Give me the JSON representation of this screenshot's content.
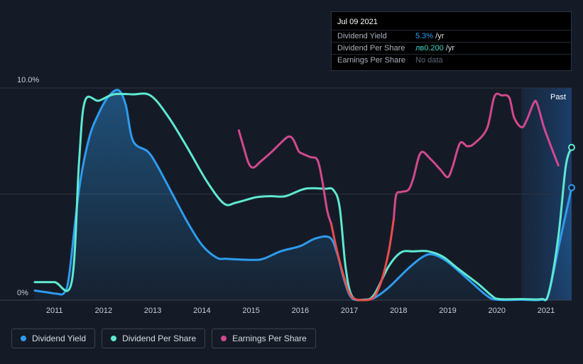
{
  "tooltip": {
    "date": "Jul 09 2021",
    "rows": [
      {
        "label": "Dividend Yield",
        "value": "5.3%",
        "unit": " /yr"
      },
      {
        "label": "Dividend Per Share",
        "value": "лв0.200",
        "unit": " /yr"
      },
      {
        "label": "Earnings Per Share",
        "value": "No data",
        "unit": ""
      }
    ]
  },
  "legend": {
    "items": [
      {
        "label": "Dividend Yield",
        "color": "#2d9cf0"
      },
      {
        "label": "Dividend Per Share",
        "color": "#5ee8d2"
      },
      {
        "label": "Earnings Per Share",
        "color": "#d0498f"
      }
    ]
  },
  "chart_data": {
    "type": "line",
    "title": "",
    "xlabel": "",
    "ylabel": "",
    "ylim": [
      0,
      10
    ],
    "y_tick_labels": [
      "10.0%",
      "0%"
    ],
    "x_tick_labels": [
      "2011",
      "2012",
      "2013",
      "2014",
      "2015",
      "2016",
      "2017",
      "2018",
      "2019",
      "2020",
      "2021"
    ],
    "xlim": [
      2010.6,
      2021.52
    ],
    "past_label": "Past",
    "past_start": 2020.5,
    "negative_color": "#e84d4d",
    "series": [
      {
        "name": "Dividend Yield",
        "color": "#2d9cf0",
        "fill": true,
        "points": [
          [
            2010.6,
            0.45
          ],
          [
            2010.9,
            0.35
          ],
          [
            2011.05,
            0.3
          ],
          [
            2011.2,
            0.35
          ],
          [
            2011.3,
            1.2
          ],
          [
            2011.5,
            5.2
          ],
          [
            2011.7,
            7.6
          ],
          [
            2011.9,
            8.8
          ],
          [
            2012.1,
            9.6
          ],
          [
            2012.3,
            9.9
          ],
          [
            2012.45,
            9.2
          ],
          [
            2012.6,
            7.5
          ],
          [
            2012.9,
            7.0
          ],
          [
            2013.1,
            6.3
          ],
          [
            2013.4,
            5.0
          ],
          [
            2013.7,
            3.7
          ],
          [
            2014.0,
            2.6
          ],
          [
            2014.3,
            2.0
          ],
          [
            2014.5,
            1.95
          ],
          [
            2015.0,
            1.9
          ],
          [
            2015.25,
            1.95
          ],
          [
            2015.6,
            2.3
          ],
          [
            2016.0,
            2.55
          ],
          [
            2016.3,
            2.9
          ],
          [
            2016.6,
            2.95
          ],
          [
            2016.75,
            2.2
          ],
          [
            2016.9,
            0.9
          ],
          [
            2017.05,
            0.1
          ],
          [
            2017.3,
            0.02
          ],
          [
            2017.5,
            0.1
          ],
          [
            2017.8,
            0.6
          ],
          [
            2018.2,
            1.5
          ],
          [
            2018.5,
            2.05
          ],
          [
            2018.7,
            2.15
          ],
          [
            2019.0,
            1.8
          ],
          [
            2019.5,
            0.8
          ],
          [
            2019.8,
            0.2
          ],
          [
            2020.0,
            0.02
          ],
          [
            2020.5,
            0.02
          ],
          [
            2020.9,
            0.02
          ],
          [
            2021.05,
            0.3
          ],
          [
            2021.3,
            3.0
          ],
          [
            2021.52,
            5.3
          ]
        ]
      },
      {
        "name": "Dividend Per Share",
        "color": "#5ee8d2",
        "fill": false,
        "points": [
          [
            2010.6,
            0.85
          ],
          [
            2011.0,
            0.85
          ],
          [
            2011.35,
            0.85
          ],
          [
            2011.5,
            6.5
          ],
          [
            2011.62,
            9.38
          ],
          [
            2011.9,
            9.4
          ],
          [
            2012.2,
            9.7
          ],
          [
            2012.6,
            9.7
          ],
          [
            2012.95,
            9.65
          ],
          [
            2013.3,
            8.7
          ],
          [
            2013.7,
            7.2
          ],
          [
            2014.1,
            5.6
          ],
          [
            2014.45,
            4.55
          ],
          [
            2014.7,
            4.6
          ],
          [
            2015.1,
            4.85
          ],
          [
            2015.4,
            4.9
          ],
          [
            2015.7,
            4.9
          ],
          [
            2016.1,
            5.25
          ],
          [
            2016.5,
            5.25
          ],
          [
            2016.67,
            5.2
          ],
          [
            2016.8,
            4.4
          ],
          [
            2016.92,
            1.6
          ],
          [
            2017.05,
            0.2
          ],
          [
            2017.3,
            0.02
          ],
          [
            2017.5,
            0.25
          ],
          [
            2017.8,
            1.6
          ],
          [
            2018.05,
            2.25
          ],
          [
            2018.3,
            2.3
          ],
          [
            2018.6,
            2.3
          ],
          [
            2018.9,
            2.05
          ],
          [
            2019.2,
            1.5
          ],
          [
            2019.6,
            0.8
          ],
          [
            2019.9,
            0.2
          ],
          [
            2020.05,
            0.05
          ],
          [
            2020.5,
            0.05
          ],
          [
            2020.9,
            0.05
          ],
          [
            2021.05,
            0.3
          ],
          [
            2021.25,
            3.0
          ],
          [
            2021.4,
            6.3
          ],
          [
            2021.52,
            7.2
          ]
        ]
      },
      {
        "name": "Earnings Per Share",
        "color": "#d0498f",
        "fill": false,
        "segments": [
          [
            [
              2014.75,
              8.0
            ],
            [
              2014.85,
              7.2
            ],
            [
              2014.95,
              6.45
            ],
            [
              2015.05,
              6.25
            ],
            [
              2015.2,
              6.55
            ],
            [
              2015.4,
              6.95
            ],
            [
              2015.6,
              7.4
            ],
            [
              2015.75,
              7.7
            ],
            [
              2015.85,
              7.6
            ],
            [
              2015.95,
              7.1
            ],
            [
              2016.0,
              6.95
            ],
            [
              2016.2,
              6.75
            ],
            [
              2016.35,
              6.6
            ],
            [
              2016.45,
              5.6
            ],
            [
              2016.55,
              4.2
            ],
            [
              2016.63,
              3.6
            ]
          ],
          [
            [
              2017.9,
              3.8
            ],
            [
              2017.95,
              4.95
            ],
            [
              2018.05,
              5.1
            ],
            [
              2018.2,
              5.2
            ],
            [
              2018.3,
              5.75
            ],
            [
              2018.45,
              6.95
            ],
            [
              2018.65,
              6.65
            ],
            [
              2018.85,
              6.15
            ],
            [
              2019.0,
              5.8
            ],
            [
              2019.1,
              6.3
            ],
            [
              2019.25,
              7.4
            ],
            [
              2019.4,
              7.25
            ],
            [
              2019.55,
              7.4
            ],
            [
              2019.8,
              8.1
            ],
            [
              2019.95,
              9.6
            ],
            [
              2020.1,
              9.65
            ],
            [
              2020.25,
              9.55
            ],
            [
              2020.35,
              8.6
            ],
            [
              2020.5,
              8.15
            ],
            [
              2020.6,
              8.45
            ],
            [
              2020.75,
              9.3
            ],
            [
              2020.82,
              9.25
            ],
            [
              2020.95,
              8.2
            ],
            [
              2021.05,
              7.55
            ],
            [
              2021.25,
              6.35
            ]
          ]
        ],
        "negative_segments": [
          [
            [
              2016.63,
              3.6
            ],
            [
              2016.75,
              2.3
            ],
            [
              2016.9,
              1.0
            ],
            [
              2017.05,
              0.15
            ],
            [
              2017.3,
              0.0
            ],
            [
              2017.5,
              0.15
            ],
            [
              2017.65,
              0.9
            ],
            [
              2017.8,
              2.3
            ],
            [
              2017.9,
              3.8
            ]
          ]
        ]
      }
    ]
  }
}
